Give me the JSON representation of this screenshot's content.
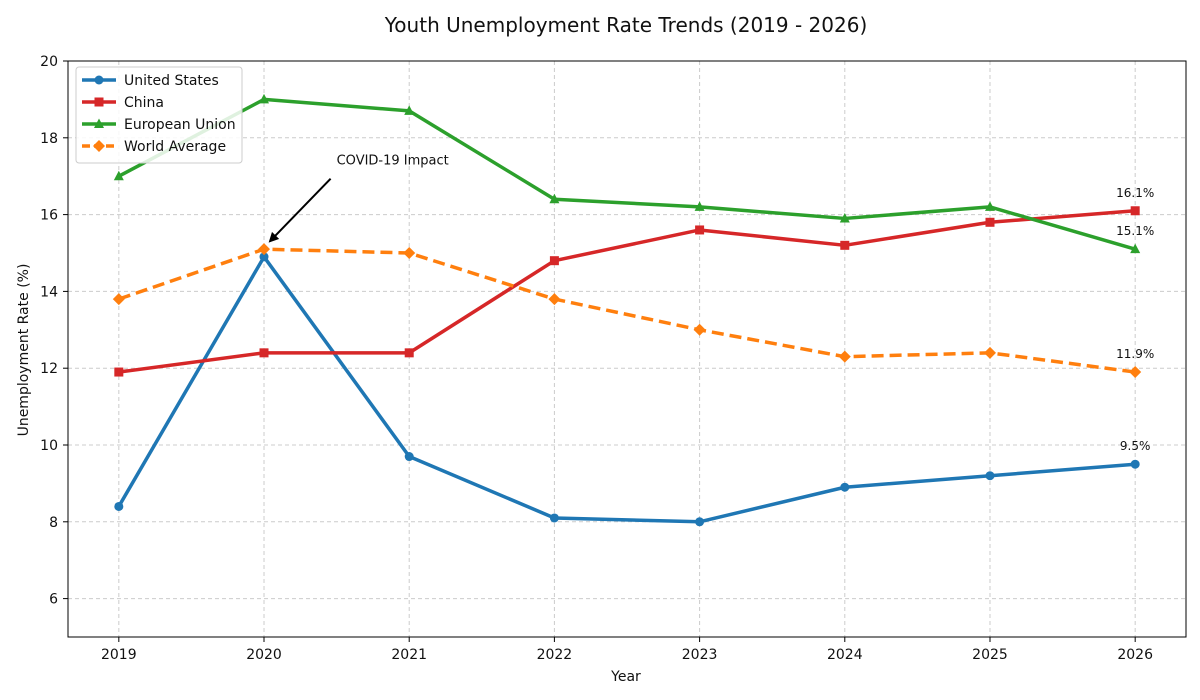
{
  "chart_data": {
    "type": "line",
    "title": "Youth Unemployment Rate Trends (2019 - 2026)",
    "xlabel": "Year",
    "ylabel": "Unemployment Rate (%)",
    "x": [
      2019,
      2020,
      2021,
      2022,
      2023,
      2024,
      2025,
      2026
    ],
    "xticks": [
      "2019",
      "2020",
      "2021",
      "2022",
      "2023",
      "2024",
      "2025",
      "2026"
    ],
    "ylim": [
      5,
      20
    ],
    "yticks": [
      6,
      8,
      10,
      12,
      14,
      16,
      18,
      20
    ],
    "grid": true,
    "legend_position": "top-left",
    "series": [
      {
        "name": "United States",
        "color": "#1f77b4",
        "marker": "circle",
        "dashed": false,
        "values": [
          8.4,
          14.9,
          9.7,
          8.1,
          8.0,
          8.9,
          9.2,
          9.5
        ],
        "end_label": "9.5%"
      },
      {
        "name": "China",
        "color": "#d62728",
        "marker": "square",
        "dashed": false,
        "values": [
          11.9,
          12.4,
          12.4,
          14.8,
          15.6,
          15.2,
          15.8,
          16.1
        ],
        "end_label": "16.1%"
      },
      {
        "name": "European Union",
        "color": "#2ca02c",
        "marker": "triangle",
        "dashed": false,
        "values": [
          17.0,
          19.0,
          18.7,
          16.4,
          16.2,
          15.9,
          16.2,
          15.1
        ],
        "end_label": "15.1%"
      },
      {
        "name": "World Average",
        "color": "#ff7f0e",
        "marker": "diamond",
        "dashed": true,
        "values": [
          13.8,
          15.1,
          15.0,
          13.8,
          13.0,
          12.3,
          12.4,
          11.9
        ],
        "end_label": "11.9%"
      }
    ],
    "annotations": [
      {
        "text": "COVID-19 Impact",
        "x": 2020,
        "y": 15.1,
        "text_x": 2020.5,
        "text_y": 17.3
      }
    ]
  }
}
